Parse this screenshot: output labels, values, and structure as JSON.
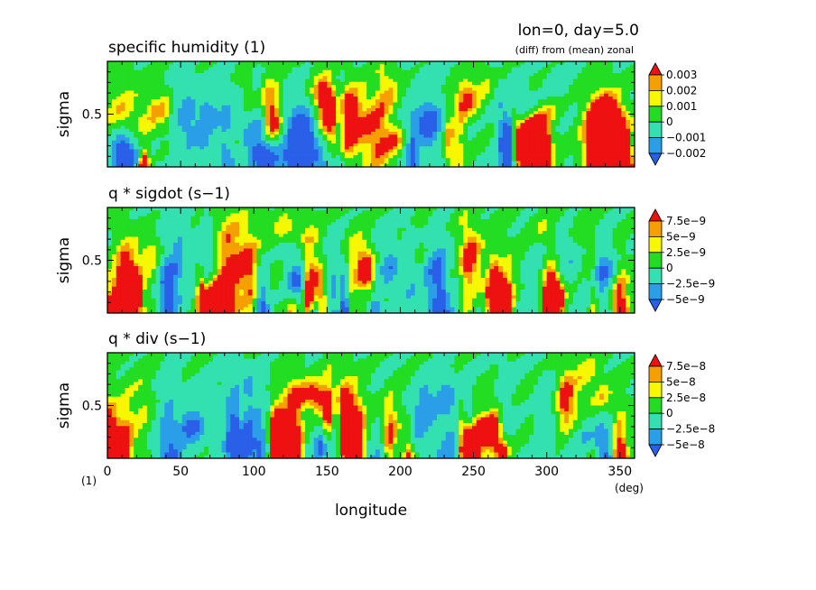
{
  "header": {
    "title": "lon=0, day=5.0",
    "subtitle": "(diff) from (mean) zonal"
  },
  "axes": {
    "xlabel": "longitude",
    "x_unit": "(deg)",
    "y_unit": "(1)",
    "xticks": [
      "0",
      "50",
      "100",
      "150",
      "200",
      "250",
      "300",
      "350"
    ],
    "xlim": [
      0,
      360
    ],
    "ylabel": "sigma",
    "yticks": [
      "0.5"
    ],
    "ylim": [
      0,
      1
    ]
  },
  "colors": {
    "levels": [
      "#2a5fe8",
      "#2a9fe8",
      "#33e0b0",
      "#22dd22",
      "#f7f700",
      "#f5a000",
      "#ee1111"
    ],
    "frame": "#000000"
  },
  "chart_data": [
    {
      "type": "heatmap",
      "title": "specific humidity (1)",
      "ylabel": "sigma",
      "xlim": [
        0,
        360
      ],
      "ylim": [
        0,
        1
      ],
      "colorbar_labels": [
        "0.003",
        "0.002",
        "0.001",
        "0",
        "−0.001",
        "−0.002"
      ],
      "seed": 11
    },
    {
      "type": "heatmap",
      "title": "q * sigdot (s−1)",
      "ylabel": "sigma",
      "xlim": [
        0,
        360
      ],
      "ylim": [
        0,
        1
      ],
      "colorbar_labels": [
        "7.5e−9",
        "5e−9",
        "2.5e−9",
        "0",
        "−2.5e−9",
        "−5e−9"
      ],
      "seed": 29
    },
    {
      "type": "heatmap",
      "title": "q * div (s−1)",
      "ylabel": "sigma",
      "xlim": [
        0,
        360
      ],
      "ylim": [
        0,
        1
      ],
      "colorbar_labels": [
        "7.5e−8",
        "5e−8",
        "2.5e−8",
        "0",
        "−2.5e−8",
        "−5e−8"
      ],
      "seed": 47
    }
  ]
}
